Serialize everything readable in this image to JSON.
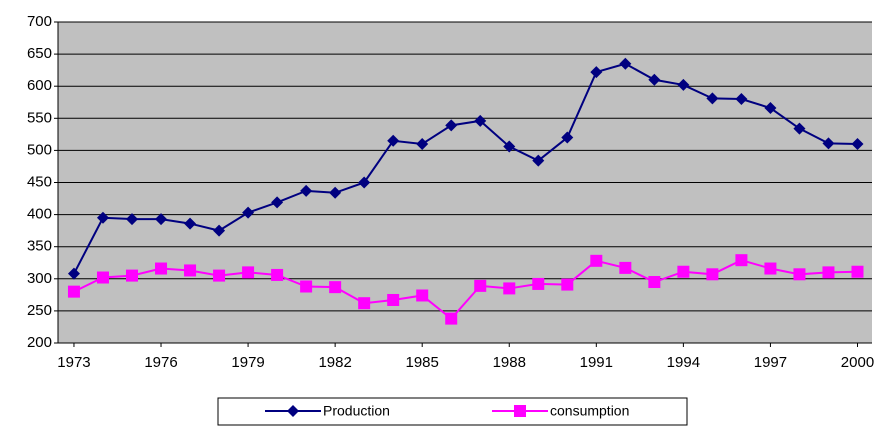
{
  "chart_data": {
    "type": "line",
    "x": [
      1973,
      1974,
      1975,
      1976,
      1977,
      1978,
      1979,
      1980,
      1981,
      1982,
      1983,
      1984,
      1985,
      1986,
      1987,
      1988,
      1989,
      1990,
      1991,
      1992,
      1993,
      1994,
      1995,
      1996,
      1997,
      1998,
      1999,
      2000
    ],
    "series": [
      {
        "name": "Production",
        "color": "#000080",
        "marker": "diamond",
        "values": [
          308,
          395,
          393,
          393,
          386,
          375,
          403,
          419,
          437,
          434,
          450,
          515,
          510,
          539,
          546,
          506,
          484,
          520,
          622,
          635,
          610,
          602,
          581,
          580,
          566,
          534,
          511,
          510
        ]
      },
      {
        "name": "consumption",
        "color": "#ff00ff",
        "marker": "square",
        "values": [
          280,
          302,
          305,
          316,
          313,
          305,
          310,
          306,
          288,
          287,
          262,
          267,
          274,
          238,
          289,
          285,
          292,
          291,
          328,
          317,
          295,
          311,
          307,
          329,
          316,
          307,
          310,
          311
        ]
      }
    ],
    "xlim": [
      1972.45,
      2000.5
    ],
    "xticks": [
      1973,
      1976,
      1979,
      1982,
      1985,
      1988,
      1991,
      1994,
      1997,
      2000
    ],
    "ylim": [
      200,
      700
    ],
    "yticks": [
      200,
      250,
      300,
      350,
      400,
      450,
      500,
      550,
      600,
      650,
      700
    ],
    "grid": true,
    "legend": "bottom"
  }
}
